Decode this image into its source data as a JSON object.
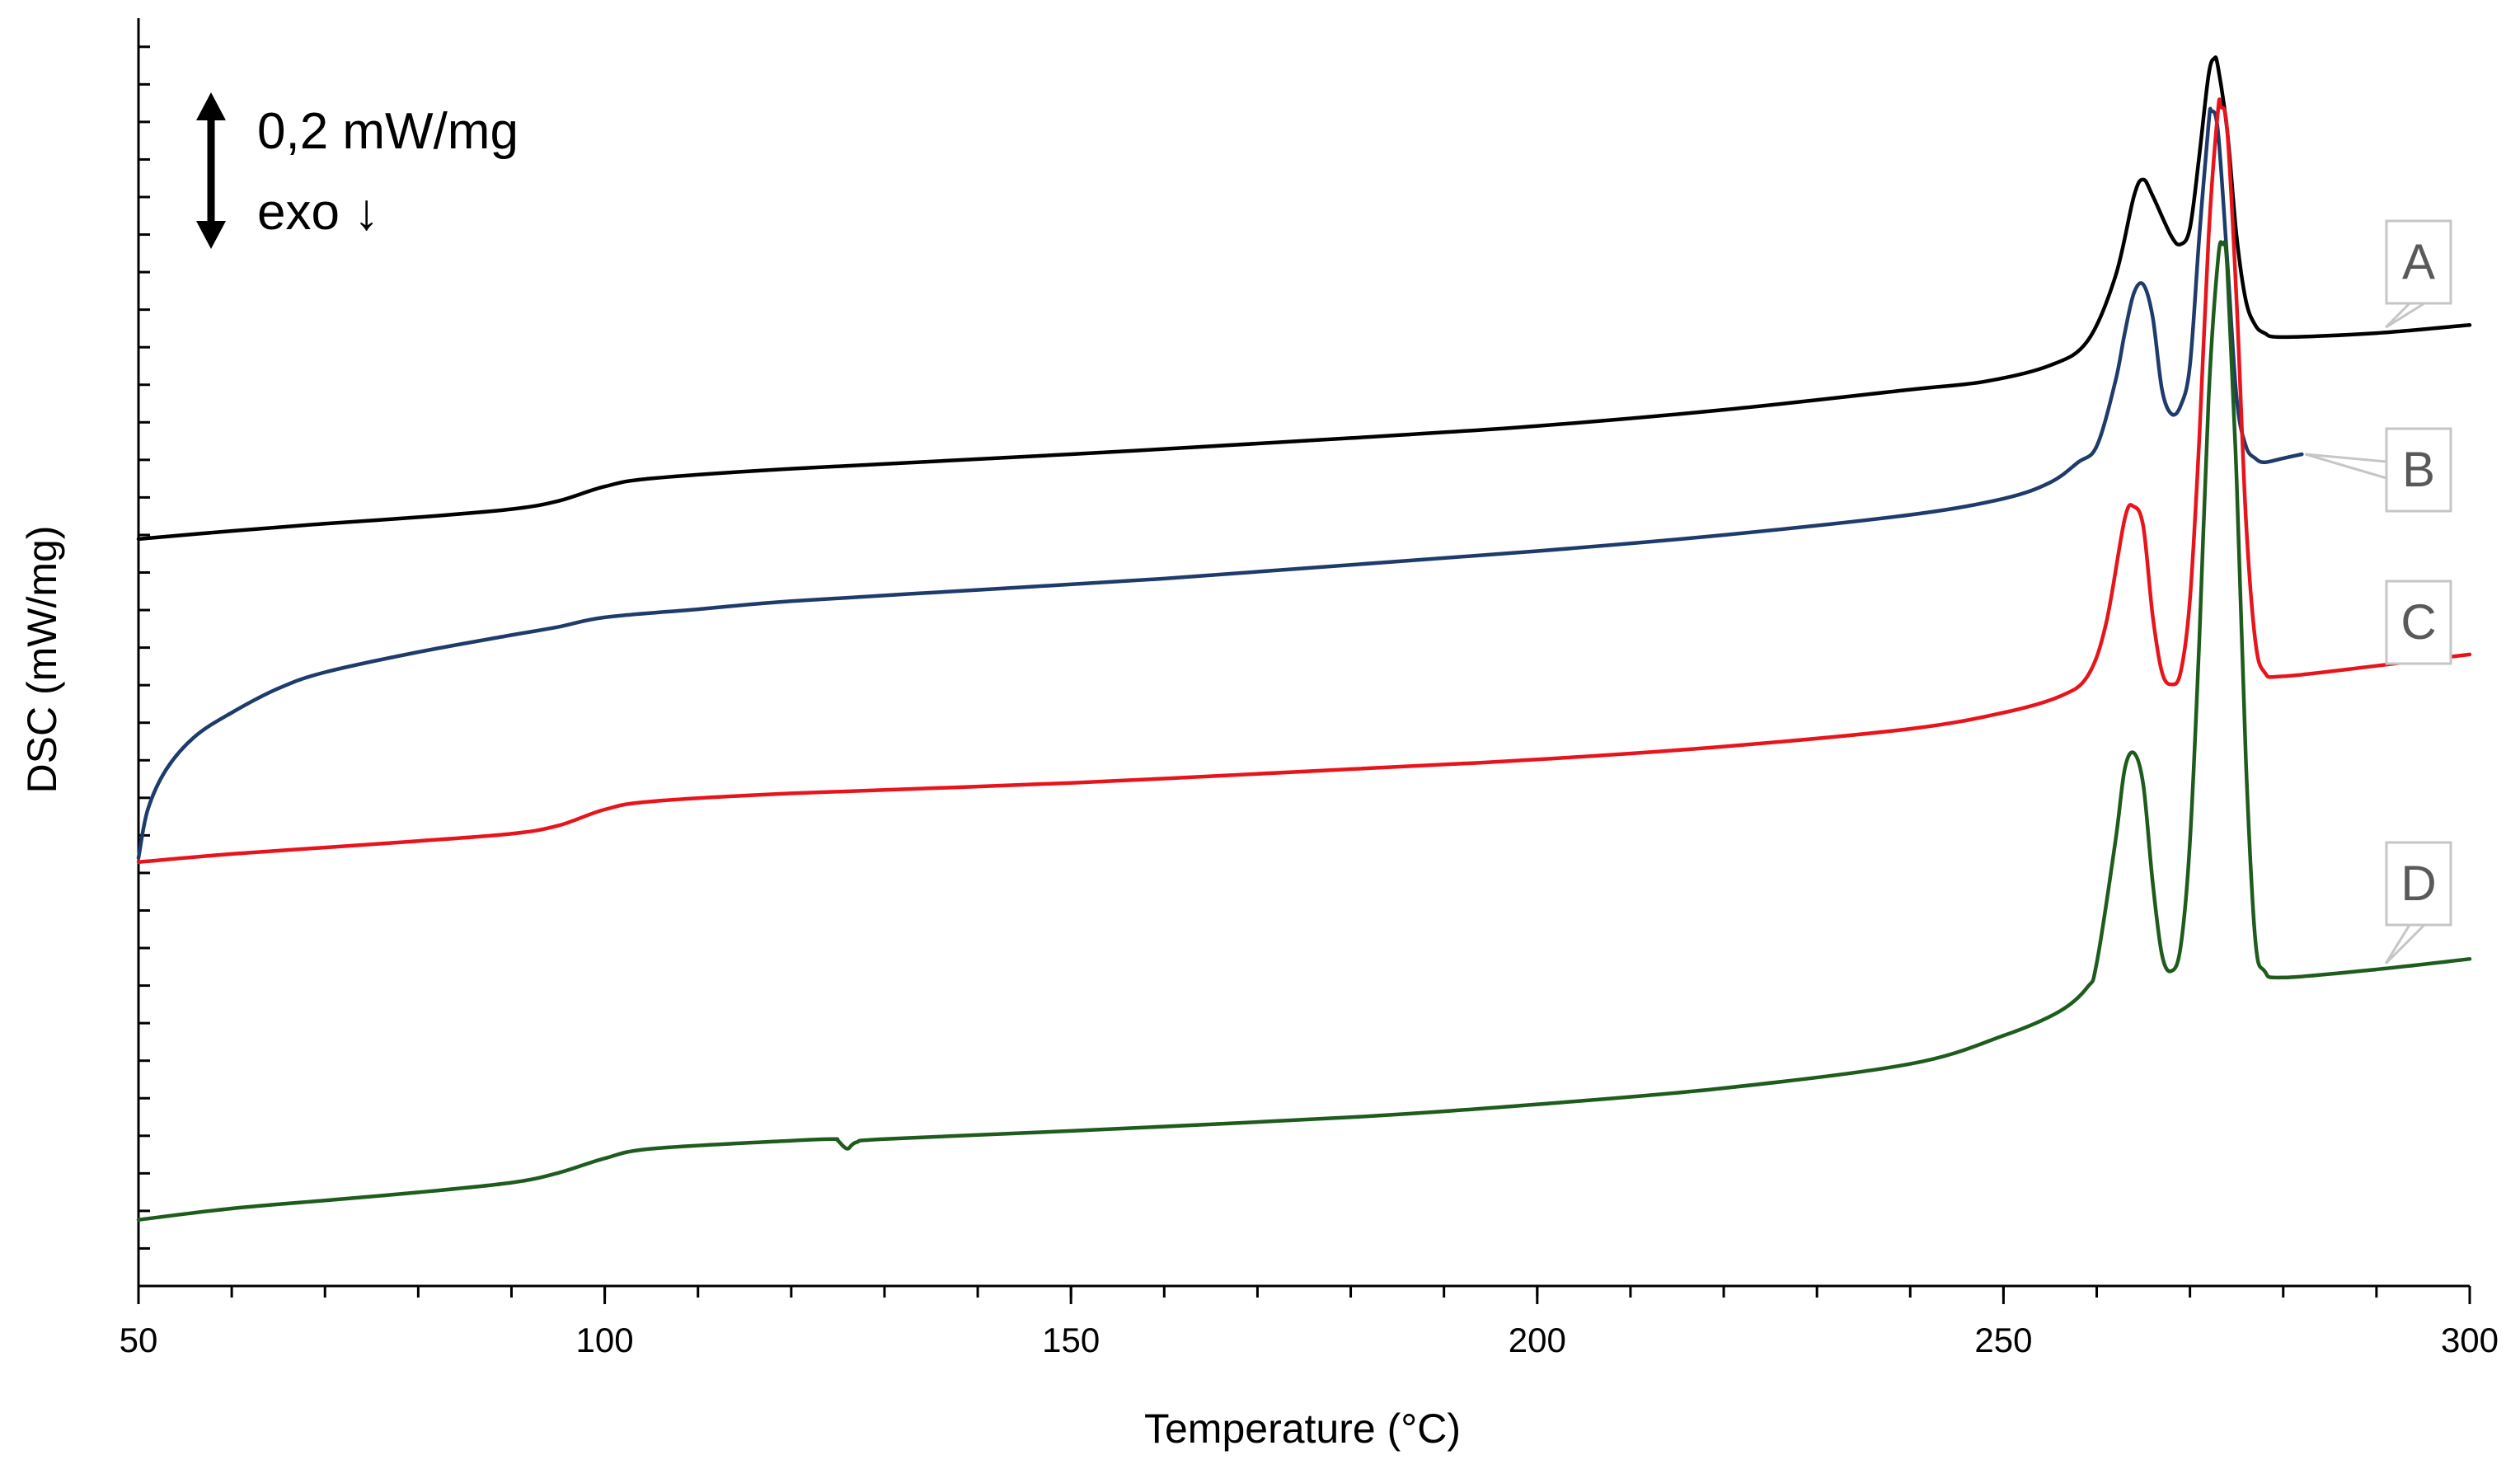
{
  "chart_data": {
    "type": "line",
    "title": "",
    "xlabel": "Temperature (°C)",
    "ylabel": "DSC (mW/mg)",
    "xlim": [
      50,
      300
    ],
    "xticks": [
      50,
      100,
      150,
      200,
      250,
      300
    ],
    "xtick_labels": [
      "50",
      "100",
      "150",
      "200",
      "250",
      "300"
    ],
    "x_minor_step": 10,
    "y_units": "mW/mg (offset, curves shifted vertically)",
    "ylim": [
      0,
      1.57
    ],
    "y_minor_step": 0.0465,
    "grid": false,
    "scale_bar": {
      "label": "0,2 mW/mg",
      "exo_label": "exo ↓",
      "value": 0.2
    },
    "series": [
      {
        "name": "A",
        "color": "#000000",
        "points": [
          [
            50,
            0.925
          ],
          [
            60,
            0.935
          ],
          [
            70,
            0.944
          ],
          [
            80,
            0.952
          ],
          [
            90,
            0.962
          ],
          [
            95,
            0.972
          ],
          [
            100,
            0.99
          ],
          [
            105,
            1.0
          ],
          [
            120,
            1.012
          ],
          [
            150,
            1.03
          ],
          [
            180,
            1.05
          ],
          [
            200,
            1.065
          ],
          [
            220,
            1.085
          ],
          [
            240,
            1.11
          ],
          [
            248,
            1.12
          ],
          [
            255,
            1.14
          ],
          [
            259,
            1.17
          ],
          [
            262,
            1.25
          ],
          [
            264,
            1.35
          ],
          [
            265,
            1.37
          ],
          [
            266,
            1.35
          ],
          [
            268,
            1.3
          ],
          [
            269,
            1.29
          ],
          [
            270,
            1.31
          ],
          [
            271,
            1.4
          ],
          [
            272,
            1.5
          ],
          [
            272.6,
            1.52
          ],
          [
            273,
            1.51
          ],
          [
            274,
            1.43
          ],
          [
            275,
            1.3
          ],
          [
            276,
            1.22
          ],
          [
            277,
            1.19
          ],
          [
            278,
            1.18
          ],
          [
            280,
            1.175
          ],
          [
            290,
            1.18
          ],
          [
            300,
            1.19
          ]
        ]
      },
      {
        "name": "B",
        "color": "#1f3b6b",
        "points": [
          [
            50,
            0.53
          ],
          [
            51,
            0.59
          ],
          [
            53,
            0.64
          ],
          [
            56,
            0.68
          ],
          [
            60,
            0.71
          ],
          [
            65,
            0.74
          ],
          [
            70,
            0.76
          ],
          [
            80,
            0.785
          ],
          [
            90,
            0.806
          ],
          [
            95,
            0.816
          ],
          [
            100,
            0.828
          ],
          [
            110,
            0.838
          ],
          [
            120,
            0.848
          ],
          [
            140,
            0.862
          ],
          [
            160,
            0.876
          ],
          [
            180,
            0.893
          ],
          [
            200,
            0.91
          ],
          [
            220,
            0.93
          ],
          [
            240,
            0.955
          ],
          [
            250,
            0.975
          ],
          [
            255,
            0.995
          ],
          [
            258,
            1.02
          ],
          [
            260,
            1.04
          ],
          [
            262,
            1.12
          ],
          [
            263,
            1.18
          ],
          [
            264,
            1.23
          ],
          [
            265,
            1.24
          ],
          [
            266,
            1.2
          ],
          [
            267,
            1.11
          ],
          [
            268,
            1.08
          ],
          [
            269,
            1.09
          ],
          [
            270,
            1.14
          ],
          [
            271,
            1.3
          ],
          [
            272,
            1.44
          ],
          [
            272.3,
            1.455
          ],
          [
            273,
            1.43
          ],
          [
            274,
            1.27
          ],
          [
            275,
            1.1
          ],
          [
            276,
            1.04
          ],
          [
            277,
            1.025
          ],
          [
            278,
            1.02
          ],
          [
            280,
            1.025
          ],
          [
            282,
            1.03
          ]
        ]
      },
      {
        "name": "C",
        "color": "#e8141c",
        "points": [
          [
            50,
            0.525
          ],
          [
            60,
            0.535
          ],
          [
            70,
            0.543
          ],
          [
            80,
            0.551
          ],
          [
            90,
            0.56
          ],
          [
            95,
            0.57
          ],
          [
            100,
            0.59
          ],
          [
            105,
            0.6
          ],
          [
            120,
            0.61
          ],
          [
            150,
            0.623
          ],
          [
            180,
            0.64
          ],
          [
            200,
            0.652
          ],
          [
            220,
            0.668
          ],
          [
            240,
            0.69
          ],
          [
            250,
            0.71
          ],
          [
            256,
            0.73
          ],
          [
            259,
            0.755
          ],
          [
            261,
            0.82
          ],
          [
            263,
            0.95
          ],
          [
            264,
            0.965
          ],
          [
            265,
            0.94
          ],
          [
            266,
            0.83
          ],
          [
            267,
            0.76
          ],
          [
            268,
            0.745
          ],
          [
            269,
            0.76
          ],
          [
            270,
            0.85
          ],
          [
            271,
            1.05
          ],
          [
            272,
            1.3
          ],
          [
            273,
            1.455
          ],
          [
            273.3,
            1.46
          ],
          [
            274,
            1.43
          ],
          [
            275,
            1.22
          ],
          [
            276,
            0.95
          ],
          [
            277,
            0.8
          ],
          [
            278,
            0.76
          ],
          [
            280,
            0.755
          ],
          [
            290,
            0.768
          ],
          [
            300,
            0.782
          ]
        ]
      },
      {
        "name": "D",
        "color": "#1e5c1e",
        "points": [
          [
            50,
            0.082
          ],
          [
            60,
            0.096
          ],
          [
            70,
            0.106
          ],
          [
            80,
            0.116
          ],
          [
            90,
            0.128
          ],
          [
            95,
            0.14
          ],
          [
            100,
            0.158
          ],
          [
            105,
            0.17
          ],
          [
            120,
            0.18
          ],
          [
            124.5,
            0.182
          ],
          [
            125,
            0.18
          ],
          [
            126,
            0.17
          ],
          [
            127,
            0.178
          ],
          [
            130,
            0.182
          ],
          [
            150,
            0.192
          ],
          [
            180,
            0.209
          ],
          [
            200,
            0.225
          ],
          [
            220,
            0.245
          ],
          [
            240,
            0.275
          ],
          [
            250,
            0.31
          ],
          [
            256,
            0.34
          ],
          [
            259,
            0.37
          ],
          [
            260,
            0.4
          ],
          [
            262,
            0.55
          ],
          [
            263,
            0.64
          ],
          [
            264,
            0.66
          ],
          [
            265,
            0.62
          ],
          [
            266,
            0.5
          ],
          [
            267,
            0.41
          ],
          [
            268,
            0.39
          ],
          [
            269,
            0.42
          ],
          [
            270,
            0.55
          ],
          [
            271,
            0.8
          ],
          [
            272,
            1.1
          ],
          [
            273,
            1.27
          ],
          [
            273.5,
            1.29
          ],
          [
            274,
            1.26
          ],
          [
            275,
            1.0
          ],
          [
            276,
            0.65
          ],
          [
            277,
            0.43
          ],
          [
            278,
            0.39
          ],
          [
            280,
            0.382
          ],
          [
            290,
            0.392
          ],
          [
            300,
            0.405
          ]
        ]
      }
    ],
    "callouts": [
      {
        "label": "A",
        "series": "A",
        "anchor_x": 291
      },
      {
        "label": "B",
        "series": "B",
        "anchor_x": 282
      },
      {
        "label": "C",
        "series": "C",
        "anchor_x": 291
      },
      {
        "label": "D",
        "series": "D",
        "anchor_x": 291
      }
    ]
  }
}
